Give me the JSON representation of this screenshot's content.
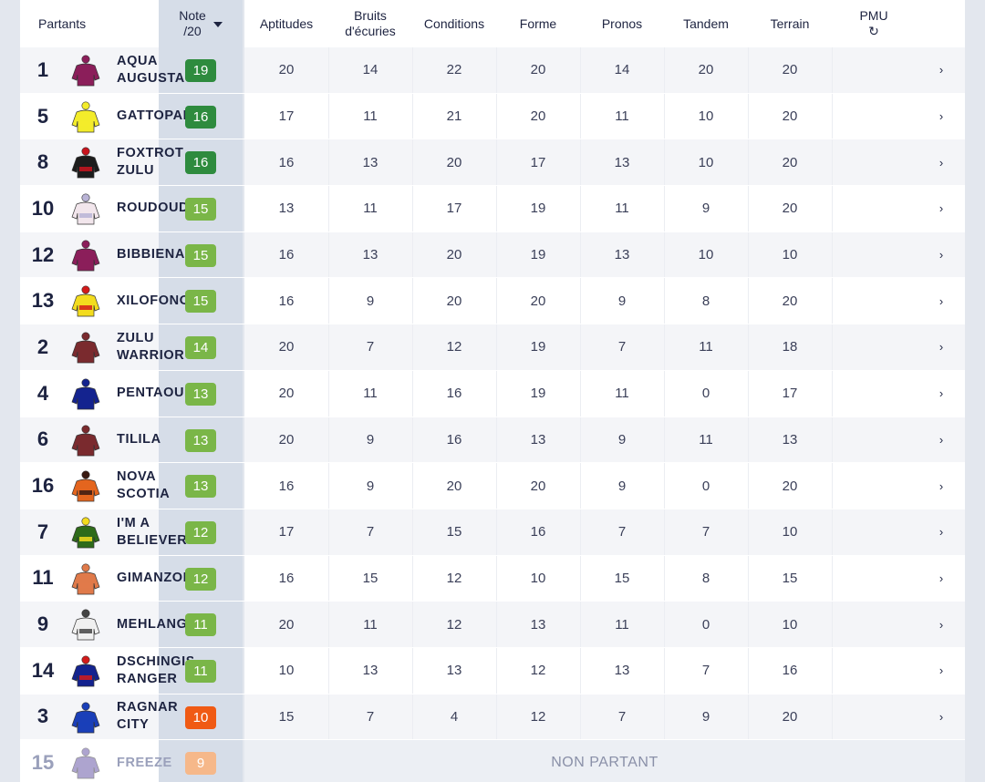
{
  "header": {
    "partants": "Partants",
    "note_line1": "Note",
    "note_line2": "/20",
    "columns": [
      {
        "line1": "Aptitudes",
        "line2": ""
      },
      {
        "line1": "Bruits",
        "line2": "d'écuries"
      },
      {
        "line1": "Conditions",
        "line2": ""
      },
      {
        "line1": "Forme",
        "line2": ""
      },
      {
        "line1": "Pronos",
        "line2": ""
      },
      {
        "line1": "Tandem",
        "line2": ""
      },
      {
        "line1": "Terrain",
        "line2": ""
      },
      {
        "line1": "PMU",
        "line2": "↻"
      }
    ]
  },
  "colors": {
    "badge_dark_green": "#2e8b3e",
    "badge_green": "#7ab648",
    "badge_orange": "#f05a14",
    "badge_peach": "#f6b88a"
  },
  "runners": [
    {
      "num": "1",
      "name": "AQUA AUGUSTA",
      "note": "19",
      "badge": "#2e8b3e",
      "jacket": "plum-jacket-icon",
      "colors": [
        "#8b1e5a",
        "#8b1e5a"
      ],
      "stats": [
        "20",
        "14",
        "22",
        "20",
        "14",
        "20",
        "20"
      ]
    },
    {
      "num": "5",
      "name": "GATTOPARDO",
      "note": "16",
      "badge": "#2e8b3e",
      "jacket": "yellow-jacket-icon",
      "colors": [
        "#f3ec2a",
        "#f3ec2a"
      ],
      "stats": [
        "17",
        "11",
        "21",
        "20",
        "11",
        "10",
        "20"
      ]
    },
    {
      "num": "8",
      "name": "FOXTROT ZULU",
      "note": "16",
      "badge": "#2e8b3e",
      "jacket": "black-red-jacket-icon",
      "colors": [
        "#1c1c1c",
        "#c9141e"
      ],
      "stats": [
        "16",
        "13",
        "20",
        "17",
        "13",
        "10",
        "20"
      ]
    },
    {
      "num": "10",
      "name": "ROUDOUDOU",
      "note": "15",
      "badge": "#7ab648",
      "jacket": "white-dots-jacket-icon",
      "colors": [
        "#f2e6ec",
        "#b9b3d6"
      ],
      "stats": [
        "13",
        "11",
        "17",
        "19",
        "11",
        "9",
        "20"
      ]
    },
    {
      "num": "12",
      "name": "BIBBIENA",
      "note": "15",
      "badge": "#7ab648",
      "jacket": "plum-jacket-icon",
      "colors": [
        "#8b1e5a",
        "#8b1e5a"
      ],
      "stats": [
        "16",
        "13",
        "20",
        "19",
        "13",
        "10",
        "10"
      ]
    },
    {
      "num": "13",
      "name": "XILOFONO",
      "note": "15",
      "badge": "#7ab648",
      "jacket": "yellow-red-blue-jacket-icon",
      "colors": [
        "#f3dc1e",
        "#d31a1a"
      ],
      "stats": [
        "16",
        "9",
        "20",
        "20",
        "9",
        "8",
        "20"
      ]
    },
    {
      "num": "2",
      "name": "ZULU WARRIOR",
      "note": "14",
      "badge": "#7ab648",
      "jacket": "maroon-jacket-icon",
      "colors": [
        "#7a2a2e",
        "#7a2a2e"
      ],
      "stats": [
        "20",
        "7",
        "12",
        "19",
        "7",
        "11",
        "18"
      ]
    },
    {
      "num": "4",
      "name": "PENTAOURI",
      "note": "13",
      "badge": "#7ab648",
      "jacket": "navy-jacket-icon",
      "colors": [
        "#14238f",
        "#14238f"
      ],
      "stats": [
        "20",
        "11",
        "16",
        "19",
        "11",
        "0",
        "17"
      ]
    },
    {
      "num": "6",
      "name": "TILILA",
      "note": "13",
      "badge": "#7ab648",
      "jacket": "maroon-jacket-icon",
      "colors": [
        "#7a2a2e",
        "#7a2a2e"
      ],
      "stats": [
        "20",
        "9",
        "16",
        "13",
        "9",
        "11",
        "13"
      ]
    },
    {
      "num": "16",
      "name": "NOVA SCOTIA",
      "note": "13",
      "badge": "#7ab648",
      "jacket": "orange-spots-jacket-icon",
      "colors": [
        "#e4651e",
        "#3a1a12"
      ],
      "stats": [
        "16",
        "9",
        "20",
        "20",
        "9",
        "0",
        "20"
      ]
    },
    {
      "num": "7",
      "name": "I'M A BELIEVER",
      "note": "12",
      "badge": "#7ab648",
      "jacket": "green-yellow-jacket-icon",
      "colors": [
        "#2e6b1a",
        "#f3dc1e"
      ],
      "stats": [
        "17",
        "7",
        "15",
        "16",
        "7",
        "7",
        "10"
      ]
    },
    {
      "num": "11",
      "name": "GIMANZOR",
      "note": "12",
      "badge": "#7ab648",
      "jacket": "orange-jacket-icon",
      "colors": [
        "#e07a4a",
        "#e07a4a"
      ],
      "stats": [
        "16",
        "15",
        "12",
        "10",
        "15",
        "8",
        "15"
      ]
    },
    {
      "num": "9",
      "name": "MEHLANGO",
      "note": "11",
      "badge": "#7ab648",
      "jacket": "grey-stars-jacket-icon",
      "colors": [
        "#f0f0f0",
        "#444444"
      ],
      "stats": [
        "20",
        "11",
        "12",
        "13",
        "11",
        "0",
        "10"
      ]
    },
    {
      "num": "14",
      "name": "DSCHINGIS RANGER",
      "note": "11",
      "badge": "#7ab648",
      "jacket": "blue-red-jacket-icon",
      "colors": [
        "#14238f",
        "#d31a1a"
      ],
      "stats": [
        "10",
        "13",
        "13",
        "12",
        "13",
        "7",
        "16"
      ]
    },
    {
      "num": "3",
      "name": "RAGNAR CITY",
      "note": "10",
      "badge": "#f05a14",
      "jacket": "royal-blue-jacket-icon",
      "colors": [
        "#1a3fb8",
        "#1a3fb8"
      ],
      "stats": [
        "15",
        "7",
        "4",
        "12",
        "7",
        "9",
        "20"
      ]
    },
    {
      "num": "15",
      "name": "FREEZE",
      "note": "9",
      "badge": "#f6b88a",
      "jacket": "violet-jacket-icon",
      "colors": [
        "#6b5aa8",
        "#6b5aa8"
      ],
      "stats": [],
      "non_partant": "NON PARTANT"
    }
  ]
}
